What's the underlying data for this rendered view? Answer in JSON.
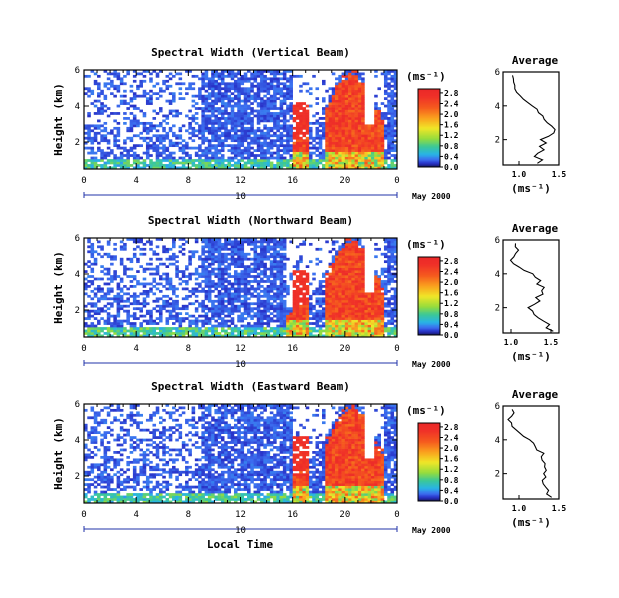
{
  "figure": {
    "date_label": "May 2000",
    "xlabel": "Local Time",
    "panel_ylabel": "Height (km)",
    "unit_label": "(ms⁻¹)",
    "avg_title": "Average",
    "avg_xlabel": "(ms⁻¹)"
  },
  "chart_data": [
    {
      "type": "heatmap",
      "title": "Spectral Width (Vertical Beam)",
      "ylabel": "Height (km)",
      "xlabel": "Local Time",
      "x_ticks": [
        "0",
        "4",
        "8",
        "12",
        "16",
        "20",
        "0"
      ],
      "x_ticks_values": [
        0,
        4,
        8,
        12,
        16,
        20,
        24
      ],
      "day_marker": {
        "label": "10",
        "at": 12
      },
      "xlim": [
        0,
        24
      ],
      "y_ticks": [
        2,
        4,
        6
      ],
      "ylim": [
        0.5,
        6.0
      ],
      "colorbar": {
        "label": "(ms⁻¹)",
        "ticks": [
          "0.0",
          "0.4",
          "0.8",
          "1.2",
          "1.6",
          "2.0",
          "2.4",
          "2.8"
        ],
        "range": [
          0.0,
          3.0
        ]
      },
      "field_description_values": {
        "background_width": 0.25,
        "low_level_width": 0.8,
        "afternoon_max_width": 2.9,
        "turbulent_start_hour": 16.0,
        "turbulent_end_hour": 23.0
      }
    },
    {
      "type": "line",
      "title": "Average",
      "xlabel": "(ms⁻¹)",
      "ylabel": "Height (km)",
      "x_ticks": [
        "1.0",
        "1.5"
      ],
      "xlim": [
        0.8,
        1.5
      ],
      "y_ticks": [
        2,
        4,
        6
      ],
      "ylim": [
        0.5,
        6.0
      ],
      "series": [
        {
          "height": [
            0.6,
            0.8,
            1.0,
            1.2,
            1.4,
            1.6,
            1.8,
            2.0,
            2.2,
            2.4,
            2.6,
            2.8,
            3.0,
            3.2,
            3.4,
            3.6,
            3.8,
            4.0,
            4.2,
            4.4,
            4.6,
            4.8,
            5.0,
            5.2,
            5.4,
            5.6,
            5.8
          ],
          "width": [
            1.22,
            1.28,
            1.2,
            1.25,
            1.3,
            1.26,
            1.33,
            1.28,
            1.38,
            1.42,
            1.44,
            1.4,
            1.35,
            1.32,
            1.28,
            1.25,
            1.22,
            1.16,
            1.12,
            1.06,
            1.02,
            0.98,
            0.96,
            0.94,
            0.92,
            0.92,
            0.93
          ]
        }
      ]
    },
    {
      "type": "heatmap",
      "title": "Spectral Width (Northward Beam)",
      "ylabel": "Height (km)",
      "xlabel": "Local Time",
      "x_ticks": [
        "0",
        "4",
        "8",
        "12",
        "16",
        "20",
        "0"
      ],
      "x_ticks_values": [
        0,
        4,
        8,
        12,
        16,
        20,
        24
      ],
      "day_marker": {
        "label": "10",
        "at": 12
      },
      "xlim": [
        0,
        24
      ],
      "y_ticks": [
        2,
        4,
        6
      ],
      "ylim": [
        0.5,
        6.0
      ],
      "colorbar": {
        "label": "(ms⁻¹)",
        "ticks": [
          "0.0",
          "0.4",
          "0.8",
          "1.2",
          "1.6",
          "2.0",
          "2.4",
          "2.8"
        ],
        "range": [
          0.0,
          3.0
        ]
      },
      "field_description_values": {
        "background_width": 0.25,
        "low_level_width": 0.9,
        "afternoon_max_width": 2.9,
        "turbulent_start_hour": 15.5,
        "turbulent_end_hour": 23.0
      }
    },
    {
      "type": "line",
      "title": "Average",
      "xlabel": "(ms⁻¹)",
      "ylabel": "Height (km)",
      "x_ticks": [
        "1.0",
        "1.5"
      ],
      "xlim": [
        0.9,
        1.6
      ],
      "y_ticks": [
        2,
        4,
        6
      ],
      "ylim": [
        0.5,
        6.0
      ],
      "series": [
        {
          "height": [
            0.6,
            0.8,
            1.0,
            1.2,
            1.4,
            1.6,
            1.8,
            2.0,
            2.2,
            2.4,
            2.6,
            2.8,
            3.0,
            3.2,
            3.4,
            3.6,
            3.8,
            4.0,
            4.2,
            4.4,
            4.6,
            4.8,
            5.0,
            5.2,
            5.4,
            5.6,
            5.8
          ],
          "width": [
            1.52,
            1.45,
            1.48,
            1.4,
            1.35,
            1.3,
            1.28,
            1.22,
            1.3,
            1.36,
            1.32,
            1.4,
            1.38,
            1.42,
            1.34,
            1.36,
            1.3,
            1.26,
            1.18,
            1.1,
            1.04,
            1.0,
            1.02,
            1.06,
            1.08,
            1.04,
            1.05
          ]
        }
      ]
    },
    {
      "type": "heatmap",
      "title": "Spectral Width (Eastward Beam)",
      "ylabel": "Height (km)",
      "xlabel": "Local Time",
      "x_ticks": [
        "0",
        "4",
        "8",
        "12",
        "16",
        "20",
        "0"
      ],
      "x_ticks_values": [
        0,
        4,
        8,
        12,
        16,
        20,
        24
      ],
      "day_marker": {
        "label": "10",
        "at": 12
      },
      "xlim": [
        0,
        24
      ],
      "y_ticks": [
        2,
        4,
        6
      ],
      "ylim": [
        0.5,
        6.0
      ],
      "colorbar": {
        "label": "(ms⁻¹)",
        "ticks": [
          "0.0",
          "0.4",
          "0.8",
          "1.2",
          "1.6",
          "2.0",
          "2.4",
          "2.8"
        ],
        "range": [
          0.0,
          3.0
        ]
      },
      "field_description_values": {
        "background_width": 0.25,
        "low_level_width": 0.85,
        "afternoon_max_width": 2.9,
        "turbulent_start_hour": 16.0,
        "turbulent_end_hour": 23.0
      }
    },
    {
      "type": "line",
      "title": "Average",
      "xlabel": "(ms⁻¹)",
      "ylabel": "Height (km)",
      "x_ticks": [
        "1.0",
        "1.5"
      ],
      "xlim": [
        0.8,
        1.5
      ],
      "y_ticks": [
        2,
        4,
        6
      ],
      "ylim": [
        0.5,
        6.0
      ],
      "series": [
        {
          "height": [
            0.6,
            0.8,
            1.0,
            1.2,
            1.4,
            1.6,
            1.8,
            2.0,
            2.2,
            2.4,
            2.6,
            2.8,
            3.0,
            3.2,
            3.4,
            3.6,
            3.8,
            4.0,
            4.2,
            4.4,
            4.6,
            4.8,
            5.0,
            5.2,
            5.4,
            5.6,
            5.8
          ],
          "width": [
            1.4,
            1.35,
            1.38,
            1.32,
            1.3,
            1.28,
            1.34,
            1.3,
            1.36,
            1.32,
            1.34,
            1.3,
            1.28,
            1.3,
            1.24,
            1.22,
            1.18,
            1.12,
            1.06,
            1.0,
            0.96,
            0.92,
            0.9,
            0.88,
            0.9,
            0.92,
            0.91
          ]
        }
      ]
    }
  ]
}
